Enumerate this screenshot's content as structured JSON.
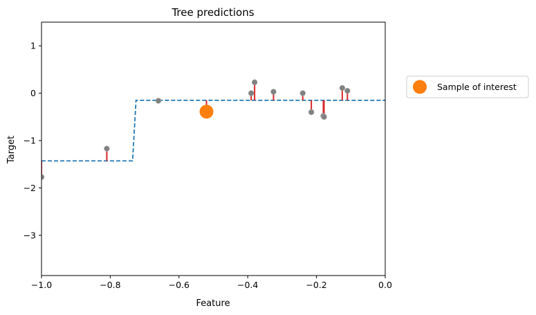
{
  "chart_data": {
    "type": "scatter",
    "title": "Tree predictions",
    "xlabel": "Feature",
    "ylabel": "Target",
    "xlim": [
      -1.0,
      0.0
    ],
    "ylim": [
      -3.85,
      1.5
    ],
    "xticks": [
      -1.0,
      -0.8,
      -0.6,
      -0.4,
      -0.2,
      0.0
    ],
    "xtick_labels": [
      "−1.0",
      "−0.8",
      "−0.6",
      "−0.4",
      "−0.2",
      "0.0"
    ],
    "yticks": [
      1,
      0,
      -1,
      -2,
      -3
    ],
    "ytick_labels": [
      "1",
      "0",
      "−1",
      "−2",
      "−3"
    ],
    "grid": false,
    "colors": {
      "points": "#808080",
      "residuals": "#d62728",
      "prediction": "#1f77b4",
      "sample": "#ff7f0e"
    },
    "points": [
      {
        "x": -1.0,
        "y": -1.77
      },
      {
        "x": -0.81,
        "y": -1.17
      },
      {
        "x": -0.66,
        "y": -0.16
      },
      {
        "x": -0.39,
        "y": 0.0
      },
      {
        "x": -0.38,
        "y": 0.23
      },
      {
        "x": -0.325,
        "y": 0.03
      },
      {
        "x": -0.24,
        "y": 0.0
      },
      {
        "x": -0.215,
        "y": -0.4
      },
      {
        "x": -0.18,
        "y": -0.48
      },
      {
        "x": -0.178,
        "y": -0.5
      },
      {
        "x": -0.125,
        "y": 0.11
      },
      {
        "x": -0.11,
        "y": 0.05
      }
    ],
    "prediction": {
      "series_type": "step",
      "style": "dashed",
      "x": [
        -1.0,
        -0.735,
        -0.725,
        0.0
      ],
      "y": [
        -1.43,
        -1.43,
        -0.15,
        -0.15
      ]
    },
    "sample_of_interest": {
      "x": -0.52,
      "y": -0.39,
      "prediction": -0.15
    },
    "legend": {
      "placement": "outside-right",
      "entries": [
        {
          "label": "Sample of interest"
        }
      ]
    }
  }
}
